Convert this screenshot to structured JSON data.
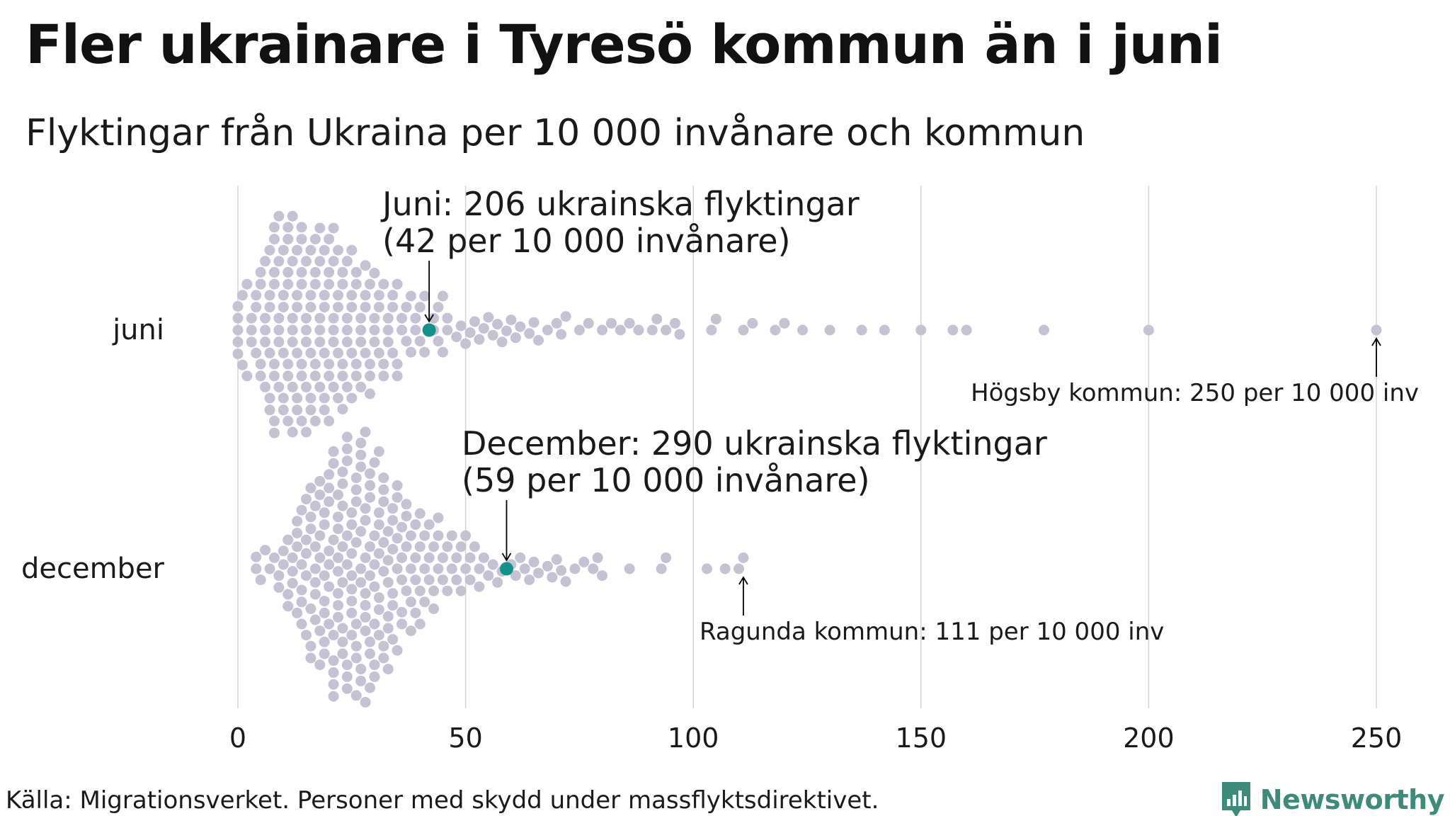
{
  "title": "Fler ukrainare i Tyresö kommun än i juni",
  "subtitle": "Flyktingar från Ukraina per 10 000 invånare och kommun",
  "source": "Källa: Migrationsverket. Personer med skydd under massflyktsdirektivet.",
  "brand": {
    "name": "Newsworthy",
    "icon": "newsworthy-logo-icon",
    "color": "#3d8b7a"
  },
  "colors": {
    "dots": "#c5c2d3",
    "highlight": "#12928a",
    "grid": "#d4d4d4",
    "text": "#1a1a1a"
  },
  "chart_data": {
    "type": "scatter",
    "subtype": "beeswarm",
    "categories": [
      "juni",
      "december"
    ],
    "xlim": [
      0,
      250
    ],
    "x_ticks": [
      0,
      50,
      100,
      150,
      200,
      250
    ],
    "grid": "vertical",
    "series": [
      {
        "name": "juni",
        "highlight": {
          "value": 42,
          "label_line1": "Juni: 206 ukrainska flyktingar",
          "label_line2": "(42 per 10 000 invånare)"
        },
        "max_annotation": {
          "value": 250,
          "label": "Högsby kommun: 250 per 10 000 inv"
        },
        "values": [
          0,
          0,
          0,
          0,
          0,
          1,
          1,
          2,
          2,
          3,
          3,
          3,
          4,
          4,
          4,
          5,
          5,
          5,
          5,
          6,
          6,
          6,
          6,
          6,
          7,
          7,
          7,
          7,
          7,
          7,
          8,
          8,
          8,
          8,
          8,
          8,
          8,
          8,
          9,
          9,
          9,
          9,
          9,
          9,
          10,
          10,
          10,
          10,
          10,
          10,
          11,
          11,
          11,
          11,
          11,
          11,
          11,
          12,
          12,
          12,
          12,
          12,
          12,
          12,
          13,
          13,
          13,
          13,
          13,
          13,
          14,
          14,
          14,
          14,
          14,
          14,
          14,
          15,
          15,
          15,
          15,
          15,
          15,
          16,
          16,
          16,
          16,
          16,
          16,
          17,
          17,
          17,
          17,
          17,
          17,
          18,
          18,
          18,
          18,
          18,
          18,
          19,
          19,
          19,
          19,
          19,
          19,
          20,
          20,
          20,
          20,
          20,
          20,
          21,
          21,
          21,
          21,
          21,
          21,
          22,
          22,
          22,
          22,
          22,
          23,
          23,
          23,
          23,
          23,
          24,
          24,
          24,
          24,
          24,
          25,
          25,
          25,
          25,
          25,
          26,
          26,
          26,
          26,
          27,
          27,
          27,
          27,
          28,
          28,
          28,
          28,
          29,
          29,
          29,
          29,
          30,
          30,
          30,
          30,
          31,
          31,
          31,
          32,
          32,
          32,
          33,
          33,
          33,
          34,
          34,
          34,
          35,
          35,
          35,
          36,
          36,
          37,
          37,
          38,
          38,
          39,
          39,
          40,
          40,
          41,
          41,
          43,
          43,
          44,
          44,
          45,
          45,
          46,
          46,
          48,
          49,
          50,
          51,
          52,
          53,
          54,
          55,
          56,
          57,
          58,
          59,
          60,
          61,
          62,
          64,
          65,
          66,
          68,
          70,
          71,
          72,
          75,
          77,
          80,
          82,
          84,
          86,
          88,
          91,
          92,
          94,
          96,
          97,
          104,
          105,
          111,
          113,
          118,
          120,
          124,
          130,
          137,
          142,
          150,
          157,
          160,
          177,
          200,
          250
        ]
      },
      {
        "name": "december",
        "highlight": {
          "value": 59,
          "label_line1": "December: 290 ukrainska flyktingar",
          "label_line2": "(59 per 10 000 invånare)"
        },
        "max_annotation": {
          "value": 111,
          "label": "Ragunda kommun: 111 per 10 000 inv"
        },
        "values": [
          4,
          4,
          5,
          6,
          7,
          8,
          9,
          9,
          10,
          10,
          11,
          11,
          11,
          12,
          12,
          12,
          13,
          13,
          13,
          13,
          14,
          14,
          14,
          14,
          14,
          15,
          15,
          15,
          15,
          15,
          16,
          16,
          16,
          16,
          16,
          16,
          17,
          17,
          17,
          17,
          17,
          17,
          18,
          18,
          18,
          18,
          18,
          18,
          19,
          19,
          19,
          19,
          19,
          19,
          19,
          20,
          20,
          20,
          20,
          20,
          20,
          20,
          21,
          21,
          21,
          21,
          21,
          21,
          21,
          21,
          22,
          22,
          22,
          22,
          22,
          22,
          22,
          22,
          23,
          23,
          23,
          23,
          23,
          23,
          23,
          23,
          24,
          24,
          24,
          24,
          24,
          24,
          24,
          24,
          25,
          25,
          25,
          25,
          25,
          25,
          25,
          25,
          26,
          26,
          26,
          26,
          26,
          26,
          26,
          26,
          27,
          27,
          27,
          27,
          27,
          27,
          27,
          27,
          28,
          28,
          28,
          28,
          28,
          28,
          28,
          28,
          28,
          29,
          29,
          29,
          29,
          29,
          29,
          29,
          29,
          30,
          30,
          30,
          30,
          30,
          30,
          30,
          31,
          31,
          31,
          31,
          31,
          31,
          31,
          32,
          32,
          32,
          32,
          32,
          32,
          32,
          33,
          33,
          33,
          33,
          33,
          33,
          34,
          34,
          34,
          34,
          34,
          34,
          35,
          35,
          35,
          35,
          35,
          36,
          36,
          36,
          36,
          36,
          37,
          37,
          37,
          37,
          38,
          38,
          38,
          38,
          39,
          39,
          39,
          39,
          40,
          40,
          40,
          40,
          41,
          41,
          41,
          42,
          42,
          42,
          43,
          43,
          43,
          44,
          44,
          44,
          45,
          45,
          46,
          46,
          47,
          47,
          48,
          48,
          49,
          49,
          50,
          50,
          51,
          51,
          52,
          53,
          53,
          54,
          55,
          56,
          57,
          58,
          60,
          61,
          62,
          63,
          64,
          65,
          66,
          68,
          69,
          70,
          71,
          72,
          74,
          76,
          78,
          79,
          80,
          86,
          93,
          94,
          103,
          107,
          110,
          111
        ]
      }
    ],
    "xlabel": "",
    "ylabel": ""
  }
}
